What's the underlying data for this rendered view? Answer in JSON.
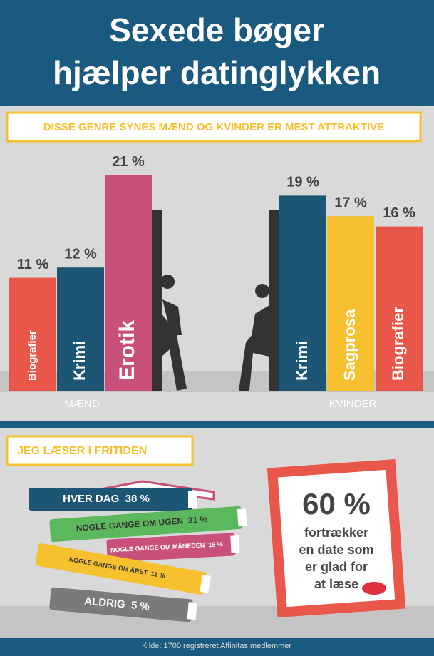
{
  "title_lines": [
    "Sexede bøger",
    "hjælper datinglykken"
  ],
  "section1": {
    "heading": "DISSE GENRE SYNES MÆND OG KVINDER ER MEST ATTRAKTIVE",
    "groups": [
      {
        "name": "MÆND",
        "books": [
          {
            "genre": "Biografier",
            "value": 11,
            "value_label": "11 %",
            "color": "#e8574a"
          },
          {
            "genre": "Krimi",
            "value": 12,
            "value_label": "12 %",
            "color": "#1d5675"
          },
          {
            "genre": "Erotik",
            "value": 21,
            "value_label": "21 %",
            "color": "#c8507a"
          }
        ]
      },
      {
        "name": "KVINDER",
        "books": [
          {
            "genre": "Krimi",
            "value": 19,
            "value_label": "19 %",
            "color": "#1d5675"
          },
          {
            "genre": "Sagprosa",
            "value": 17,
            "value_label": "17 %",
            "color": "#f6c02f"
          },
          {
            "genre": "Biografier",
            "value": 16,
            "value_label": "16 %",
            "color": "#e8574a"
          }
        ]
      }
    ]
  },
  "section2": {
    "heading": "JEG LÆSER I FRITIDEN",
    "items": [
      {
        "label": "HVER DAG",
        "percent": "38 %"
      },
      {
        "label": "NOGLE GANGE OM UGEN",
        "percent": "31 %"
      },
      {
        "label": "NOGLE GANGE OM MÅNEDEN",
        "percent": "15 %"
      },
      {
        "label": "NOGLE GANGE OM ÅRET",
        "percent": "11 %"
      },
      {
        "label": "ALDRIG",
        "percent": "5 %"
      }
    ],
    "frame": {
      "big": "60 %",
      "lines": [
        "fortrækker",
        "en date som",
        "er glad for",
        "at læse"
      ]
    }
  },
  "source": "Kilde: 1700 registreret Affinitas medlemmer"
}
